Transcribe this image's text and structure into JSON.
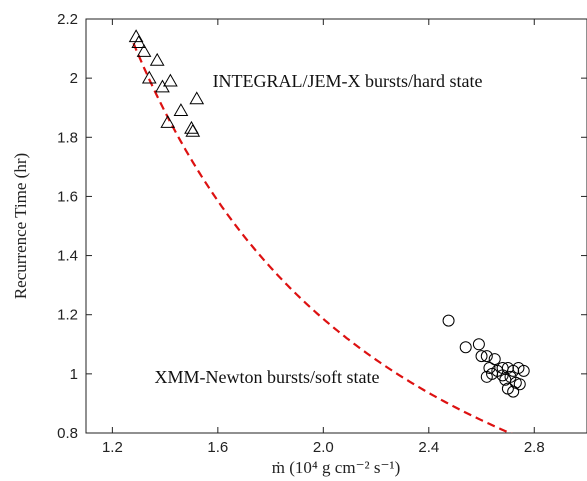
{
  "chart_data": {
    "type": "scatter",
    "title": "",
    "xlabel": "ṁ (10⁴ g cm⁻² s⁻¹)",
    "ylabel": "Recurrence Time (hr)",
    "xlim": [
      1.1,
      3.0
    ],
    "ylim": [
      0.8,
      2.2
    ],
    "x_ticks": [
      1.2,
      1.6,
      2.0,
      2.4,
      2.8
    ],
    "x_tick_labels": [
      "1.2",
      "1.6",
      "2.0",
      "2.4",
      "2.8"
    ],
    "y_ticks": [
      0.8,
      1.0,
      1.2,
      1.4,
      1.6,
      1.8,
      2.0,
      2.2
    ],
    "y_tick_labels": [
      "0.8",
      "1",
      "1.2",
      "1.4",
      "1.6",
      "1.8",
      "2",
      "2.2"
    ],
    "grid": false,
    "series": [
      {
        "marker": "triangle",
        "color": "#000000",
        "points": [
          [
            1.29,
            2.14
          ],
          [
            1.3,
            2.12
          ],
          [
            1.32,
            2.09
          ],
          [
            1.37,
            2.06
          ],
          [
            1.34,
            2.0
          ],
          [
            1.39,
            1.97
          ],
          [
            1.42,
            1.99
          ],
          [
            1.46,
            1.89
          ],
          [
            1.52,
            1.93
          ],
          [
            1.41,
            1.85
          ],
          [
            1.5,
            1.83
          ],
          [
            1.505,
            1.82
          ]
        ]
      },
      {
        "marker": "circle",
        "color": "#000000",
        "points": [
          [
            2.475,
            1.18
          ],
          [
            2.59,
            1.1
          ],
          [
            2.54,
            1.09
          ],
          [
            2.6,
            1.06
          ],
          [
            2.62,
            1.06
          ],
          [
            2.65,
            1.05
          ],
          [
            2.63,
            1.02
          ],
          [
            2.66,
            1.01
          ],
          [
            2.68,
            1.02
          ],
          [
            2.7,
            1.02
          ],
          [
            2.72,
            1.01
          ],
          [
            2.74,
            1.02
          ],
          [
            2.76,
            1.01
          ],
          [
            2.62,
            0.99
          ],
          [
            2.64,
            1.0
          ],
          [
            2.69,
            0.98
          ],
          [
            2.71,
            0.99
          ],
          [
            2.73,
            0.97
          ],
          [
            2.7,
            0.95
          ],
          [
            2.72,
            0.94
          ],
          [
            2.745,
            0.965
          ],
          [
            2.68,
            0.995
          ]
        ]
      },
      {
        "type": "line",
        "style": "dashed",
        "color": "#dd1111",
        "fit": {
          "a": 2.92,
          "n": 1.3
        },
        "x_range": [
          1.28,
          3.0
        ]
      }
    ],
    "annotations": [
      {
        "text": "INTEGRAL/JEM-X bursts/hard state",
        "x": 1.58,
        "y": 1.99
      },
      {
        "text": "XMM-Newton bursts/soft state",
        "x": 1.36,
        "y": 0.99
      }
    ]
  }
}
